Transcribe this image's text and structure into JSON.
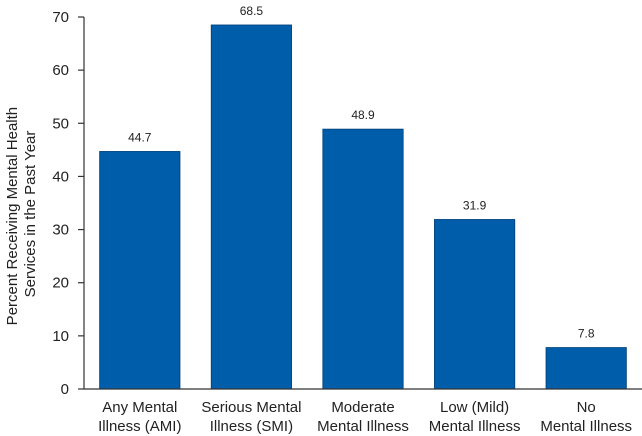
{
  "chart_data": {
    "type": "bar",
    "categories": [
      [
        "Any Mental",
        "Illness (AMI)"
      ],
      [
        "Serious Mental",
        "Illness (SMI)"
      ],
      [
        "Moderate",
        "Mental Illness"
      ],
      [
        "Low (Mild)",
        "Mental Illness"
      ],
      [
        "No",
        "Mental Illness"
      ]
    ],
    "values": [
      44.7,
      68.5,
      48.9,
      31.9,
      7.8
    ],
    "data_labels": [
      "44.7",
      "68.5",
      "48.9",
      "31.9",
      "7.8"
    ],
    "ylabel": [
      "Percent Receiving Mental Health",
      "Services in the Past Year"
    ],
    "ylim": [
      0,
      70
    ],
    "yticks": [
      0,
      10,
      20,
      30,
      40,
      50,
      60,
      70
    ],
    "grid": false,
    "bar_color": "#005daa"
  }
}
